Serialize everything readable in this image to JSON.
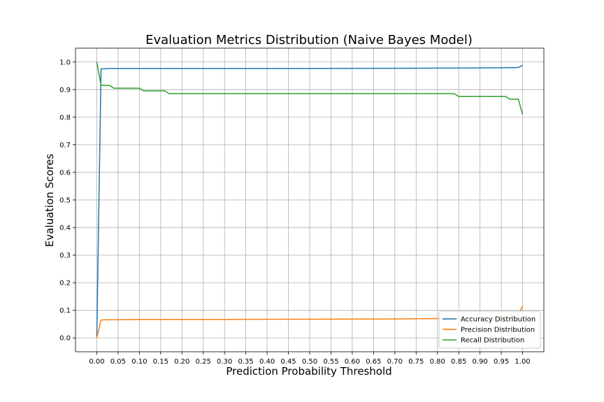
{
  "chart_data": {
    "type": "line",
    "title": "Evaluation Metrics Distribution (Naive Bayes Model)",
    "xlabel": "Prediction Probability Threshold",
    "ylabel": "Evaluation Scores",
    "xlim": [
      -0.05,
      1.05
    ],
    "ylim": [
      -0.05,
      1.05
    ],
    "xticks": [
      0.0,
      0.05,
      0.1,
      0.15,
      0.2,
      0.25,
      0.3,
      0.35,
      0.4,
      0.45,
      0.5,
      0.55,
      0.6,
      0.65,
      0.7,
      0.75,
      0.8,
      0.85,
      0.9,
      0.95,
      1.0
    ],
    "xtick_labels": [
      "0.00",
      "0.05",
      "0.10",
      "0.15",
      "0.20",
      "0.25",
      "0.30",
      "0.35",
      "0.40",
      "0.45",
      "0.50",
      "0.55",
      "0.60",
      "0.65",
      "0.70",
      "0.75",
      "0.80",
      "0.85",
      "0.90",
      "0.95",
      "1.00"
    ],
    "yticks": [
      0.0,
      0.1,
      0.2,
      0.3,
      0.4,
      0.5,
      0.6,
      0.7,
      0.8,
      0.9,
      1.0
    ],
    "ytick_labels": [
      "0.0",
      "0.1",
      "0.2",
      "0.3",
      "0.4",
      "0.5",
      "0.6",
      "0.7",
      "0.8",
      "0.9",
      "1.0"
    ],
    "grid": true,
    "legend_position": "lower-right",
    "series": [
      {
        "name": "Accuracy Distribution",
        "color": "#1f77b4",
        "x": [
          0.0,
          0.01,
          0.03,
          0.1,
          0.3,
          0.5,
          0.7,
          0.85,
          0.95,
          0.99,
          1.0
        ],
        "y": [
          0.005,
          0.975,
          0.976,
          0.976,
          0.976,
          0.976,
          0.977,
          0.978,
          0.979,
          0.98,
          0.988
        ]
      },
      {
        "name": "Precision Distribution",
        "color": "#ff7f0e",
        "x": [
          0.0,
          0.01,
          0.03,
          0.1,
          0.2,
          0.3,
          0.5,
          0.7,
          0.8,
          0.9,
          0.95,
          0.98,
          0.99,
          1.0
        ],
        "y": [
          0.0,
          0.065,
          0.066,
          0.067,
          0.067,
          0.067,
          0.068,
          0.069,
          0.07,
          0.072,
          0.075,
          0.078,
          0.085,
          0.115
        ]
      },
      {
        "name": "Recall Distribution",
        "color": "#2ca02c",
        "x": [
          0.0,
          0.01,
          0.02,
          0.03,
          0.04,
          0.1,
          0.11,
          0.16,
          0.17,
          0.84,
          0.85,
          0.96,
          0.97,
          0.99,
          1.0
        ],
        "y": [
          1.0,
          0.915,
          0.915,
          0.915,
          0.905,
          0.905,
          0.895,
          0.895,
          0.885,
          0.885,
          0.875,
          0.875,
          0.865,
          0.865,
          0.81
        ]
      }
    ]
  }
}
